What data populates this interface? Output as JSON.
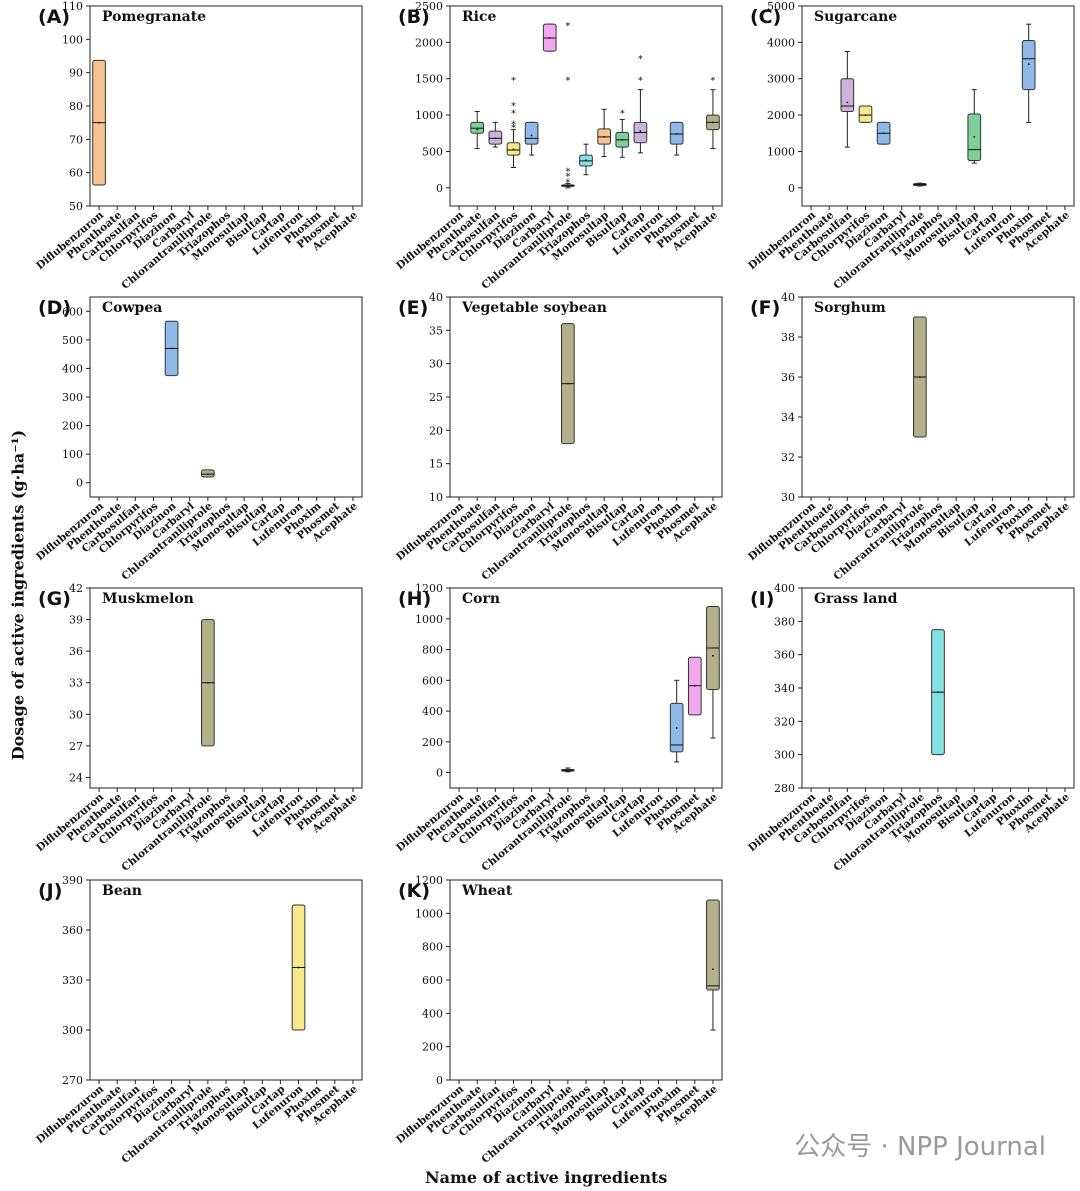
{
  "figure": {
    "ylabel": "Dosage of active ingredients (g·ha⁻¹)",
    "xlabel": "Name of active ingredients",
    "watermark": "公众号 · NPP Journal",
    "categories": [
      "Diflubenzuron",
      "Phenthoate",
      "Carbosulfan",
      "Chlorpyrifos",
      "Diazinon",
      "Carbaryl",
      "Chlorantraniliprole",
      "Triazophos",
      "Monosultap",
      "Bisultap",
      "Cartap",
      "Lufenuron",
      "Phoxim",
      "Phosmet",
      "Acephate"
    ],
    "colors": {
      "orange": "#f6c28f",
      "green": "#7fcf9a",
      "purple": "#c9b3d9",
      "yellow": "#f5e98a",
      "blue": "#8db8e8",
      "pink": "#f2a7f0",
      "cyan": "#86e1e3",
      "olive": "#b3b08c"
    }
  },
  "chart_data": [
    {
      "type": "box",
      "panel": "(A)",
      "title": "Pomegranate",
      "ylim": [
        50,
        110
      ],
      "yticks": [
        50,
        60,
        70,
        80,
        90,
        100,
        110
      ],
      "boxes": [
        {
          "category": "Diflubenzuron",
          "color": "orange",
          "q1": 56.3,
          "median": 75,
          "q3": 93.7,
          "mean": 75
        }
      ]
    },
    {
      "type": "box",
      "panel": "(B)",
      "title": "Rice",
      "ylim": [
        -250,
        2500
      ],
      "yticks": [
        0,
        500,
        1000,
        1500,
        2000,
        2500
      ],
      "boxes": [
        {
          "category": "Phenthoate",
          "color": "green",
          "q1": 750,
          "median": 820,
          "q3": 900,
          "whisker_low": 540,
          "whisker_high": 1050,
          "mean": 800
        },
        {
          "category": "Carbosulfan",
          "color": "purple",
          "q1": 600,
          "median": 680,
          "q3": 780,
          "whisker_low": 560,
          "whisker_high": 900,
          "mean": 680
        },
        {
          "category": "Chlorpyrifos",
          "color": "yellow",
          "q1": 450,
          "median": 520,
          "q3": 620,
          "whisker_low": 280,
          "whisker_high": 800,
          "mean": 530,
          "outliers": [
            850,
            900,
            1050,
            1150,
            1500
          ]
        },
        {
          "category": "Diazinon",
          "color": "blue",
          "q1": 600,
          "median": 680,
          "q3": 900,
          "whisker_low": 450,
          "whisker_high": 900,
          "mean": 720
        },
        {
          "category": "Carbaryl",
          "color": "pink",
          "q1": 1880,
          "median": 2060,
          "q3": 2250,
          "whisker_low": 1880,
          "whisker_high": 2250,
          "mean": 2060
        },
        {
          "category": "Chlorantraniliprole",
          "color": "olive",
          "q1": 20,
          "median": 30,
          "q3": 40,
          "whisker_low": 0,
          "whisker_high": 60,
          "mean": 30,
          "outliers": [
            100,
            180,
            250,
            1500,
            2250
          ]
        },
        {
          "category": "Triazophos",
          "color": "cyan",
          "q1": 300,
          "median": 370,
          "q3": 450,
          "whisker_low": 180,
          "whisker_high": 600,
          "mean": 380
        },
        {
          "category": "Monosultap",
          "color": "orange",
          "q1": 600,
          "median": 700,
          "q3": 810,
          "whisker_low": 430,
          "whisker_high": 1080,
          "mean": 700
        },
        {
          "category": "Bisultap",
          "color": "green",
          "q1": 560,
          "median": 660,
          "q3": 760,
          "whisker_low": 420,
          "whisker_high": 940,
          "mean": 660,
          "outliers": [
            1050
          ]
        },
        {
          "category": "Cartap",
          "color": "purple",
          "q1": 620,
          "median": 760,
          "q3": 900,
          "whisker_low": 480,
          "whisker_high": 1350,
          "mean": 780,
          "outliers": [
            1500,
            1800
          ]
        },
        {
          "category": "Phoxim",
          "color": "blue",
          "q1": 600,
          "median": 740,
          "q3": 900,
          "whisker_low": 450,
          "whisker_high": 900,
          "mean": 740
        },
        {
          "category": "Acephate",
          "color": "olive",
          "q1": 800,
          "median": 900,
          "q3": 1000,
          "whisker_low": 540,
          "whisker_high": 1350,
          "mean": 900,
          "outliers": [
            1500
          ]
        }
      ]
    },
    {
      "type": "box",
      "panel": "(C)",
      "title": "Sugarcane",
      "ylim": [
        -500,
        5000
      ],
      "yticks": [
        0,
        1000,
        2000,
        3000,
        4000,
        5000
      ],
      "boxes": [
        {
          "category": "Carbosulfan",
          "color": "purple",
          "q1": 2100,
          "median": 2250,
          "q3": 3000,
          "whisker_low": 1120,
          "whisker_high": 3750,
          "mean": 2350
        },
        {
          "category": "Chlorpyrifos",
          "color": "yellow",
          "q1": 1800,
          "median": 2000,
          "q3": 2250,
          "whisker_low": 1800,
          "whisker_high": 2250,
          "mean": 2000
        },
        {
          "category": "Diazinon",
          "color": "blue",
          "q1": 1200,
          "median": 1500,
          "q3": 1800,
          "whisker_low": 1200,
          "whisker_high": 1800,
          "mean": 1500
        },
        {
          "category": "Chlorantraniliprole",
          "color": "olive",
          "q1": 60,
          "median": 90,
          "q3": 120,
          "whisker_low": 50,
          "whisker_high": 130,
          "mean": 90
        },
        {
          "category": "Bisultap",
          "color": "green",
          "q1": 750,
          "median": 1050,
          "q3": 2030,
          "whisker_low": 680,
          "whisker_high": 2700,
          "mean": 1400
        },
        {
          "category": "Phoxim",
          "color": "blue",
          "q1": 2700,
          "median": 3550,
          "q3": 4050,
          "whisker_low": 1800,
          "whisker_high": 4500,
          "mean": 3400
        }
      ]
    },
    {
      "type": "box",
      "panel": "(D)",
      "title": "Cowpea",
      "ylim": [
        -50,
        650
      ],
      "yticks": [
        0,
        100,
        200,
        300,
        400,
        500,
        600
      ],
      "boxes": [
        {
          "category": "Diazinon",
          "color": "blue",
          "q1": 375,
          "median": 470,
          "q3": 565,
          "mean": 470
        },
        {
          "category": "Chlorantraniliprole",
          "color": "olive",
          "q1": 20,
          "median": 30,
          "q3": 45,
          "mean": 30
        }
      ]
    },
    {
      "type": "box",
      "panel": "(E)",
      "title": "Vegetable soybean",
      "ylim": [
        10,
        40
      ],
      "yticks": [
        10,
        15,
        20,
        25,
        30,
        35,
        40
      ],
      "boxes": [
        {
          "category": "Chlorantraniliprole",
          "color": "olive",
          "q1": 18,
          "median": 27,
          "q3": 36,
          "mean": 27
        }
      ]
    },
    {
      "type": "box",
      "panel": "(F)",
      "title": "Sorghum",
      "ylim": [
        30,
        40
      ],
      "yticks": [
        30,
        32,
        34,
        36,
        38,
        40
      ],
      "boxes": [
        {
          "category": "Chlorantraniliprole",
          "color": "olive",
          "q1": 33,
          "median": 36,
          "q3": 39,
          "mean": 36
        }
      ]
    },
    {
      "type": "box",
      "panel": "(G)",
      "title": "Muskmelon",
      "ylim": [
        23,
        42
      ],
      "yticks": [
        24,
        27,
        30,
        33,
        36,
        39,
        42
      ],
      "boxes": [
        {
          "category": "Chlorantraniliprole",
          "color": "olive",
          "q1": 27,
          "median": 33,
          "q3": 39,
          "mean": 33
        }
      ]
    },
    {
      "type": "box",
      "panel": "(H)",
      "title": "Corn",
      "ylim": [
        -100,
        1200
      ],
      "yticks": [
        0,
        200,
        400,
        600,
        800,
        1000,
        1200
      ],
      "boxes": [
        {
          "category": "Chlorantraniliprole",
          "color": "olive",
          "q1": 10,
          "median": 15,
          "q3": 20,
          "whisker_low": 5,
          "whisker_high": 30,
          "mean": 15
        },
        {
          "category": "Phoxim",
          "color": "blue",
          "q1": 135,
          "median": 180,
          "q3": 450,
          "whisker_low": 70,
          "whisker_high": 600,
          "mean": 290
        },
        {
          "category": "Phosmet",
          "color": "pink",
          "q1": 375,
          "median": 565,
          "q3": 750,
          "mean": 565
        },
        {
          "category": "Acephate",
          "color": "olive",
          "q1": 540,
          "median": 810,
          "q3": 1080,
          "whisker_low": 225,
          "whisker_high": 1080,
          "mean": 760
        }
      ]
    },
    {
      "type": "box",
      "panel": "(I)",
      "title": "Grass land",
      "ylim": [
        280,
        400
      ],
      "yticks": [
        280,
        300,
        320,
        340,
        360,
        380,
        400
      ],
      "boxes": [
        {
          "category": "Triazophos",
          "color": "cyan",
          "q1": 300,
          "median": 337.5,
          "q3": 375,
          "mean": 337.5
        }
      ]
    },
    {
      "type": "box",
      "panel": "(J)",
      "title": "Bean",
      "ylim": [
        270,
        390
      ],
      "yticks": [
        270,
        300,
        330,
        360,
        390
      ],
      "boxes": [
        {
          "category": "Lufenuron",
          "color": "yellow",
          "q1": 300,
          "median": 337.5,
          "q3": 375,
          "mean": 337.5
        }
      ]
    },
    {
      "type": "box",
      "panel": "(K)",
      "title": "Wheat",
      "ylim": [
        0,
        1200
      ],
      "yticks": [
        0,
        200,
        400,
        600,
        800,
        1000,
        1200
      ],
      "boxes": [
        {
          "category": "Acephate",
          "color": "olive",
          "q1": 540,
          "median": 565,
          "q3": 1080,
          "whisker_low": 300,
          "whisker_high": 1080,
          "mean": 665
        }
      ]
    }
  ]
}
